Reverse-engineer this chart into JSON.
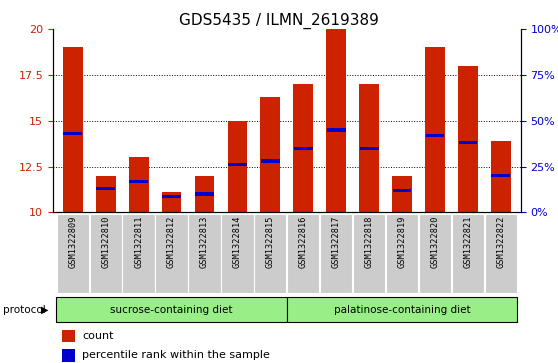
{
  "title": "GDS5435 / ILMN_2619389",
  "samples": [
    "GSM1322809",
    "GSM1322810",
    "GSM1322811",
    "GSM1322812",
    "GSM1322813",
    "GSM1322814",
    "GSM1322815",
    "GSM1322816",
    "GSM1322817",
    "GSM1322818",
    "GSM1322819",
    "GSM1322820",
    "GSM1322821",
    "GSM1322822"
  ],
  "count_values": [
    19.0,
    12.0,
    13.0,
    11.1,
    12.0,
    15.0,
    16.3,
    17.0,
    20.0,
    17.0,
    12.0,
    19.0,
    18.0,
    13.9
  ],
  "percentile_values": [
    14.3,
    11.3,
    11.7,
    10.85,
    11.0,
    12.6,
    12.8,
    13.5,
    14.5,
    13.5,
    11.2,
    14.2,
    13.8,
    12.0
  ],
  "ylim_left": [
    10,
    20
  ],
  "ylim_right": [
    0,
    100
  ],
  "yticks_left": [
    10,
    12.5,
    15,
    17.5,
    20
  ],
  "yticks_right": [
    0,
    25,
    50,
    75,
    100
  ],
  "ytick_labels_right": [
    "0%",
    "25%",
    "50%",
    "75%",
    "100%"
  ],
  "bar_color": "#cc2200",
  "marker_color": "#0000cc",
  "grid_lines": [
    12.5,
    15.0,
    17.5
  ],
  "sucrose_label": "sucrose-containing diet",
  "palatinose_label": "palatinose-containing diet",
  "protocol_label": "protocol",
  "group_color": "#99ee88",
  "xticklabel_area_color": "#cccccc",
  "legend_count": "count",
  "legend_percentile": "percentile rank within the sample",
  "title_fontsize": 11,
  "tick_fontsize": 8,
  "bar_width": 0.6,
  "blue_bar_height": 0.18
}
